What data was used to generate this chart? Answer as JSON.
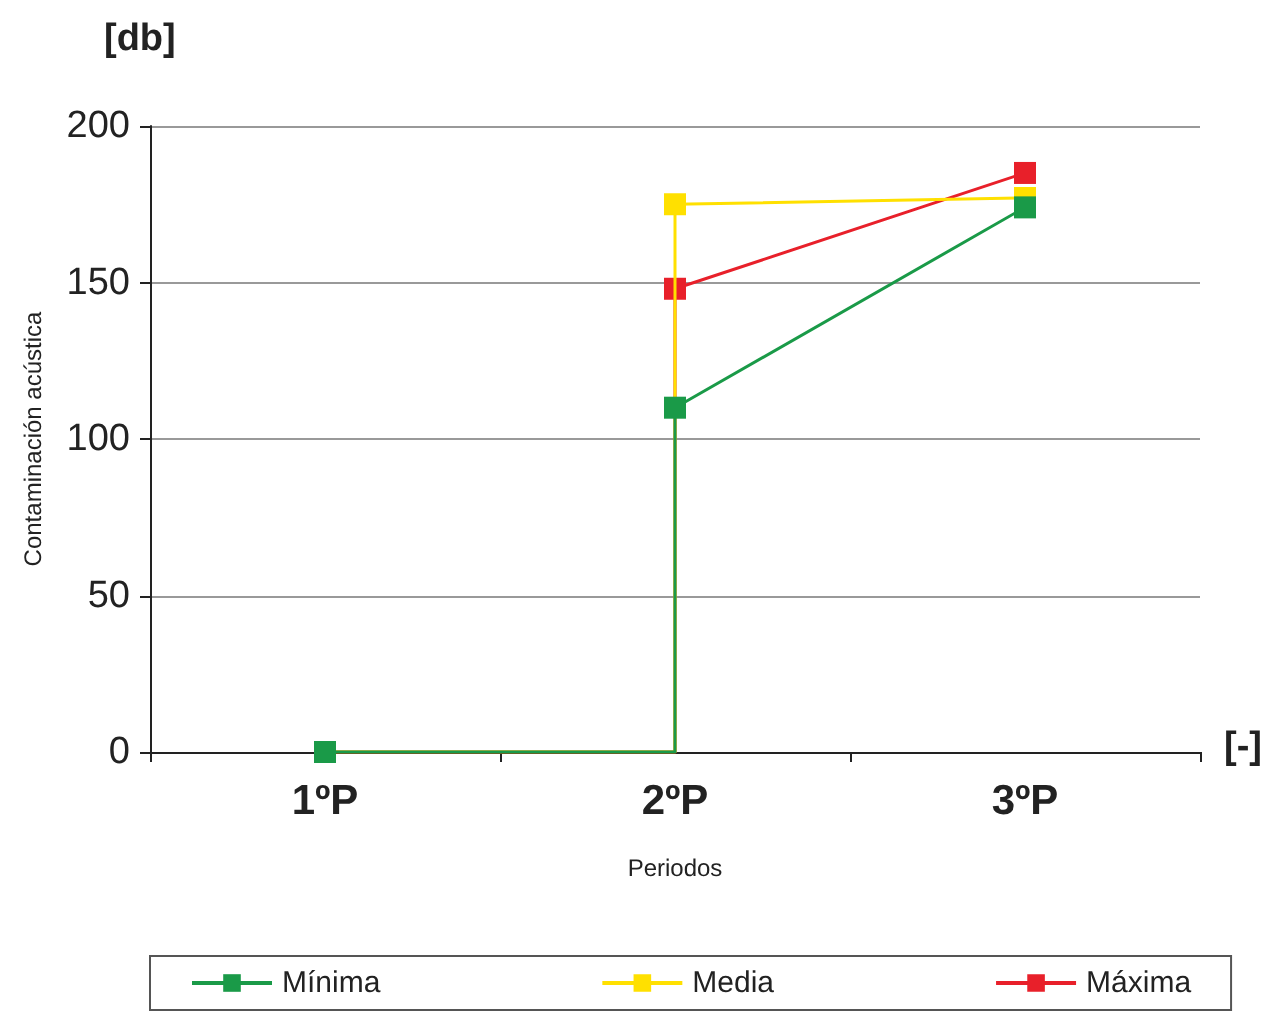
{
  "chart_data": {
    "type": "line",
    "xlabel": "Periodos",
    "ylabel": "Contaminación acústica",
    "annotations": [
      "[db]",
      "[-]"
    ],
    "categories": [
      "1ºP",
      "2ºP",
      "3ºP"
    ],
    "series": [
      {
        "name": "Mínima",
        "color": "#1a9a48",
        "x": [
          "1ºP",
          "2ºP",
          "2ºP",
          "3ºP"
        ],
        "values": [
          0,
          0,
          110,
          174
        ]
      },
      {
        "name": "Media",
        "color": "#ffe000",
        "x": [
          "1ºP",
          "2ºP",
          "2ºP",
          "3ºP"
        ],
        "values": [
          0,
          0,
          175,
          177
        ]
      },
      {
        "name": "Máxima",
        "color": "#e8202a",
        "x": [
          "1ºP",
          "2ºP",
          "2ºP",
          "3ºP"
        ],
        "values": [
          0,
          0,
          148,
          185
        ]
      }
    ],
    "ylim": [
      0,
      200
    ],
    "yticks": [
      0,
      50,
      100,
      150,
      200
    ],
    "grid": "y",
    "legend": "bottom",
    "marker": "square",
    "line_style": "solid"
  }
}
